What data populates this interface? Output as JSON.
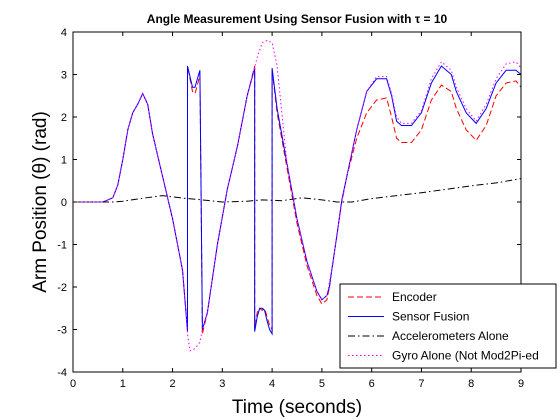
{
  "chart_data": {
    "type": "line",
    "title": "Angle Measurement Using Sensor Fusion with τ = 10",
    "xlabel": "Time (seconds)",
    "ylabel": "Arm Position (θ) (rad)",
    "xlim": [
      0,
      9
    ],
    "ylim": [
      -4,
      4
    ],
    "xticks": [
      0,
      1,
      2,
      3,
      4,
      5,
      6,
      7,
      8,
      9
    ],
    "yticks": [
      -4,
      -3,
      -2,
      -1,
      0,
      1,
      2,
      3,
      4
    ],
    "grid": false,
    "legend_position": "bottom-right",
    "series": [
      {
        "name": "Encoder",
        "color": "#ff0000",
        "dash": "dashed",
        "x": [
          0,
          0.6,
          0.8,
          0.9,
          1.0,
          1.1,
          1.2,
          1.3,
          1.4,
          1.5,
          1.6,
          1.8,
          2.0,
          2.2,
          2.3,
          2.3,
          2.4,
          2.45,
          2.5,
          2.55,
          2.6,
          2.7,
          2.9,
          3.1,
          3.3,
          3.5,
          3.65,
          3.65,
          3.7,
          3.75,
          3.8,
          3.85,
          3.9,
          3.95,
          4.0,
          4.0,
          4.1,
          4.3,
          4.5,
          4.7,
          4.9,
          5.0,
          5.1,
          5.15,
          5.2,
          5.3,
          5.4,
          5.5,
          5.7,
          5.9,
          6.1,
          6.3,
          6.4,
          6.5,
          6.6,
          6.8,
          7.0,
          7.2,
          7.4,
          7.6,
          7.7,
          7.9,
          8.1,
          8.3,
          8.5,
          8.7,
          8.9,
          9.0
        ],
        "y": [
          0,
          0,
          0.1,
          0.4,
          1.0,
          1.7,
          2.1,
          2.3,
          2.55,
          2.3,
          1.6,
          0.6,
          -0.4,
          -1.6,
          -3.0,
          3.2,
          2.6,
          2.55,
          2.75,
          3.0,
          -3.1,
          -2.6,
          -1.0,
          0.3,
          1.3,
          2.5,
          3.2,
          -3.0,
          -2.6,
          -2.5,
          -2.55,
          -2.5,
          -2.7,
          -2.9,
          -3.0,
          3.1,
          2.1,
          0.8,
          -0.5,
          -1.5,
          -2.2,
          -2.4,
          -2.3,
          -2.0,
          -1.6,
          -0.8,
          0.0,
          0.6,
          1.5,
          2.1,
          2.4,
          2.45,
          2.0,
          1.5,
          1.4,
          1.4,
          1.7,
          2.4,
          2.75,
          2.6,
          2.2,
          1.7,
          1.45,
          1.8,
          2.5,
          2.8,
          2.85,
          2.7
        ]
      },
      {
        "name": "Sensor Fusion",
        "color": "#0000ff",
        "dash": "solid",
        "x": [
          0,
          0.6,
          0.8,
          0.9,
          1.0,
          1.1,
          1.2,
          1.3,
          1.4,
          1.5,
          1.6,
          1.8,
          2.0,
          2.2,
          2.3,
          2.3,
          2.4,
          2.45,
          2.5,
          2.55,
          2.6,
          2.7,
          2.9,
          3.1,
          3.3,
          3.5,
          3.65,
          3.65,
          3.7,
          3.75,
          3.8,
          3.85,
          3.9,
          3.95,
          4.0,
          4.0,
          4.1,
          4.3,
          4.5,
          4.7,
          4.9,
          5.0,
          5.1,
          5.15,
          5.2,
          5.3,
          5.4,
          5.5,
          5.7,
          5.9,
          6.1,
          6.3,
          6.4,
          6.5,
          6.6,
          6.8,
          7.0,
          7.2,
          7.4,
          7.6,
          7.7,
          7.9,
          8.1,
          8.3,
          8.5,
          8.7,
          8.9,
          9.0
        ],
        "y": [
          0,
          0,
          0.1,
          0.4,
          1.0,
          1.7,
          2.1,
          2.3,
          2.55,
          2.3,
          1.6,
          0.6,
          -0.4,
          -1.6,
          -3.05,
          3.2,
          2.7,
          2.7,
          2.9,
          3.1,
          -3.0,
          -2.6,
          -1.0,
          0.3,
          1.3,
          2.5,
          3.15,
          -3.05,
          -2.7,
          -2.5,
          -2.5,
          -2.55,
          -2.8,
          -3.0,
          -3.1,
          3.15,
          2.2,
          0.9,
          -0.4,
          -1.4,
          -2.1,
          -2.3,
          -2.2,
          -2.0,
          -1.6,
          -0.8,
          0.05,
          0.6,
          1.7,
          2.6,
          2.9,
          2.9,
          2.5,
          1.9,
          1.8,
          1.8,
          2.1,
          2.8,
          3.2,
          3.0,
          2.6,
          2.1,
          1.85,
          2.2,
          2.8,
          3.1,
          3.1,
          3.0
        ]
      },
      {
        "name": "Accelerometers Alone",
        "color": "#000000",
        "dash": "dashdot",
        "x": [
          0,
          0.8,
          1.0,
          1.3,
          1.6,
          1.8,
          2.0,
          2.3,
          2.6,
          3.0,
          3.5,
          3.8,
          4.2,
          4.6,
          5.0,
          5.3,
          5.6,
          6.0,
          6.5,
          7.0,
          7.5,
          8.0,
          8.5,
          9.0
        ],
        "y": [
          0,
          0.0,
          0.02,
          0.07,
          0.12,
          0.15,
          0.12,
          0.08,
          0.05,
          0.0,
          0.02,
          0.05,
          0.03,
          0.1,
          0.05,
          0.0,
          0.0,
          0.08,
          0.15,
          0.22,
          0.3,
          0.38,
          0.45,
          0.55
        ]
      },
      {
        "name": "Gyro Alone (Not Mod2Pi-ed",
        "color": "#ff00ff",
        "dash": "dotted",
        "x": [
          0,
          0.6,
          0.8,
          0.9,
          1.0,
          1.1,
          1.2,
          1.3,
          1.4,
          1.5,
          1.6,
          1.8,
          2.0,
          2.2,
          2.3,
          2.35,
          2.45,
          2.55,
          2.6,
          2.7,
          2.9,
          3.1,
          3.3,
          3.5,
          3.7,
          3.8,
          3.9,
          4.0,
          4.1,
          4.3,
          4.5,
          4.7,
          4.9,
          5.0,
          5.1,
          5.2,
          5.3,
          5.4,
          5.5,
          5.7,
          5.9,
          6.1,
          6.3,
          6.4,
          6.5,
          6.6,
          6.8,
          7.0,
          7.2,
          7.4,
          7.6,
          7.7,
          7.9,
          8.1,
          8.3,
          8.5,
          8.7,
          8.9,
          9.0
        ],
        "y": [
          0,
          0,
          0.1,
          0.4,
          1.0,
          1.7,
          2.1,
          2.3,
          2.55,
          2.3,
          1.6,
          0.6,
          -0.4,
          -1.6,
          -3.1,
          -3.5,
          -3.45,
          -3.3,
          -3.0,
          -2.6,
          -1.0,
          0.3,
          1.3,
          2.5,
          3.4,
          3.75,
          3.8,
          3.75,
          3.2,
          0.9,
          -0.4,
          -1.4,
          -2.1,
          -2.3,
          -2.2,
          -1.6,
          -0.8,
          0.0,
          0.6,
          1.7,
          2.6,
          2.95,
          2.95,
          2.55,
          2.0,
          1.85,
          1.85,
          2.15,
          2.9,
          3.3,
          3.1,
          2.7,
          2.2,
          1.9,
          2.3,
          2.9,
          3.25,
          3.3,
          3.15
        ]
      }
    ]
  }
}
